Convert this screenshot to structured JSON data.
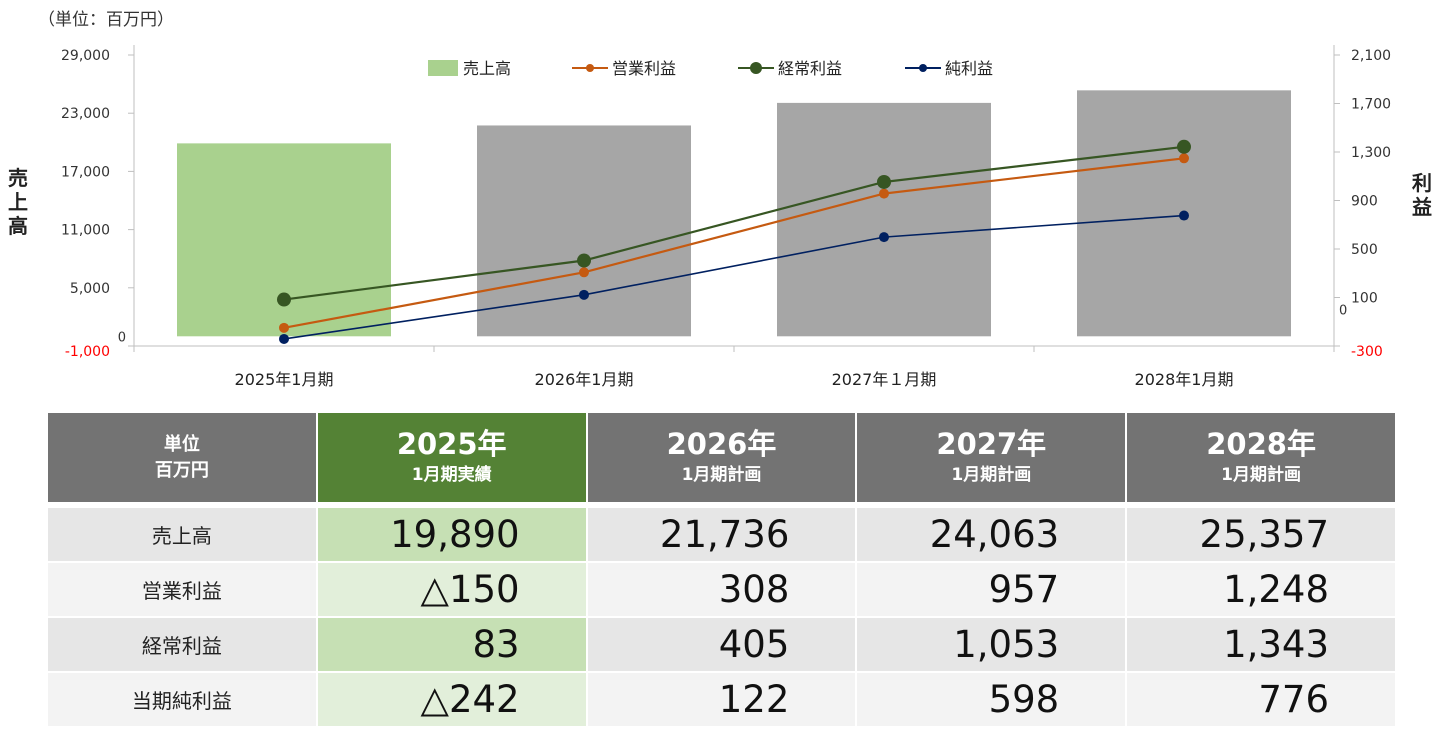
{
  "unit_note": "（単位：百万円）",
  "chart_data": {
    "type": "bar",
    "categories": [
      "2025年1月期",
      "2026年1月期",
      "2027年１月期",
      "2028年1月期"
    ],
    "bars": {
      "name": "売上高",
      "values": [
        19890,
        21736,
        24063,
        25357
      ],
      "colors": [
        "#a9d18e",
        "#a6a6a6",
        "#a6a6a6",
        "#a6a6a6"
      ]
    },
    "series": [
      {
        "name": "営業利益",
        "values": [
          -150,
          308,
          957,
          1248
        ],
        "color": "#c55a11",
        "marker_size": 5
      },
      {
        "name": "経常利益",
        "values": [
          83,
          405,
          1053,
          1343
        ],
        "color": "#375623",
        "marker_size": 7
      },
      {
        "name": "純利益",
        "values": [
          -242,
          122,
          598,
          776
        ],
        "color": "#002060",
        "marker_size": 5
      }
    ],
    "y_left": {
      "label": "売上高",
      "min": -1000,
      "max": 29000,
      "ticks": [
        "-1,000",
        "5,000",
        "11,000",
        "17,000",
        "23,000",
        "29,000"
      ],
      "tick_values": [
        -1000,
        5000,
        11000,
        17000,
        23000,
        29000
      ],
      "zero_label": "0"
    },
    "y_right": {
      "label": "利益",
      "min": -300,
      "max": 2100,
      "ticks": [
        "-300",
        "100",
        "500",
        "900",
        "1,300",
        "1,700",
        "2,100"
      ],
      "tick_values": [
        -300,
        100,
        500,
        900,
        1300,
        1700,
        2100
      ],
      "zero_label": "0"
    },
    "legend_position": "top",
    "negative_tick_color": "#ff0000"
  },
  "table": {
    "unit_header": [
      "単位",
      "百万円"
    ],
    "columns": [
      {
        "year": "2025年",
        "sub": "1月期実績",
        "highlight": true
      },
      {
        "year": "2026年",
        "sub": "1月期計画",
        "highlight": false
      },
      {
        "year": "2027年",
        "sub": "1月期計画",
        "highlight": false
      },
      {
        "year": "2028年",
        "sub": "1月期計画",
        "highlight": false
      }
    ],
    "rows": [
      {
        "label": "売上高",
        "values": [
          "19,890",
          "21,736",
          "24,063",
          "25,357"
        ]
      },
      {
        "label": "営業利益",
        "values": [
          "△150",
          "308",
          "957",
          "1,248"
        ]
      },
      {
        "label": "経常利益",
        "values": [
          "83",
          "405",
          "1,053",
          "1,343"
        ]
      },
      {
        "label": "当期純利益",
        "values": [
          "△242",
          "122",
          "598",
          "776"
        ]
      }
    ]
  }
}
